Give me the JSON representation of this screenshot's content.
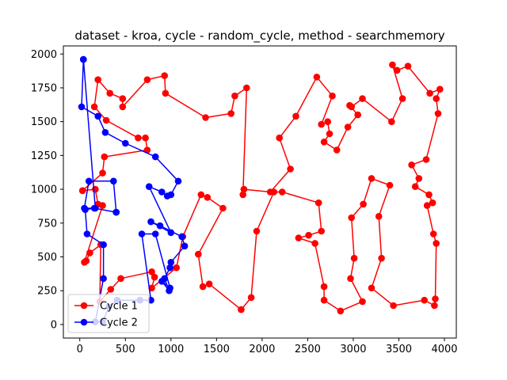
{
  "chart_data": {
    "type": "line",
    "title": "dataset - kroa, cycle - random_cycle, method - searchmemory",
    "xlabel": "",
    "ylabel": "",
    "xlim": [
      -180,
      4130
    ],
    "ylim": [
      -100,
      2060
    ],
    "x_ticks": [
      0,
      500,
      1000,
      1500,
      2000,
      2500,
      3000,
      3500,
      4000
    ],
    "y_ticks": [
      0,
      250,
      500,
      750,
      1000,
      1250,
      1500,
      1750,
      2000
    ],
    "grid": false,
    "legend_position": "lower-left",
    "series": [
      {
        "name": "Cycle 1",
        "color": "#ff0000",
        "points": [
          [
            30,
            990
          ],
          [
            170,
            1000
          ],
          [
            200,
            890
          ],
          [
            250,
            880
          ],
          [
            50,
            460
          ],
          [
            70,
            470
          ],
          [
            110,
            530
          ],
          [
            230,
            590
          ],
          [
            220,
            170
          ],
          [
            340,
            260
          ],
          [
            450,
            340
          ],
          [
            790,
            390
          ],
          [
            820,
            350
          ],
          [
            790,
            270
          ],
          [
            1060,
            420
          ],
          [
            1130,
            650
          ],
          [
            1330,
            960
          ],
          [
            1400,
            940
          ],
          [
            1570,
            860
          ],
          [
            1300,
            520
          ],
          [
            1350,
            280
          ],
          [
            1420,
            300
          ],
          [
            1770,
            110
          ],
          [
            1880,
            200
          ],
          [
            1940,
            690
          ],
          [
            2130,
            980
          ],
          [
            2220,
            980
          ],
          [
            2620,
            900
          ],
          [
            2650,
            690
          ],
          [
            2510,
            660
          ],
          [
            2400,
            640
          ],
          [
            2580,
            600
          ],
          [
            2680,
            280
          ],
          [
            2680,
            180
          ],
          [
            2860,
            100
          ],
          [
            3100,
            170
          ],
          [
            2970,
            340
          ],
          [
            3010,
            490
          ],
          [
            2980,
            790
          ],
          [
            3110,
            890
          ],
          [
            3200,
            1080
          ],
          [
            3400,
            1030
          ],
          [
            3280,
            800
          ],
          [
            3310,
            490
          ],
          [
            3200,
            270
          ],
          [
            3440,
            140
          ],
          [
            3780,
            180
          ],
          [
            3890,
            140
          ],
          [
            3900,
            190
          ],
          [
            3910,
            600
          ],
          [
            3880,
            670
          ],
          [
            3810,
            880
          ],
          [
            3870,
            900
          ],
          [
            3830,
            960
          ],
          [
            3680,
            1020
          ],
          [
            3720,
            1080
          ],
          [
            3640,
            1180
          ],
          [
            3800,
            1220
          ],
          [
            3930,
            1560
          ],
          [
            3910,
            1670
          ],
          [
            3950,
            1740
          ],
          [
            3840,
            1710
          ],
          [
            3600,
            1910
          ],
          [
            3480,
            1880
          ],
          [
            3430,
            1920
          ],
          [
            3540,
            1670
          ],
          [
            3420,
            1500
          ],
          [
            3100,
            1670
          ],
          [
            2980,
            1610
          ],
          [
            2960,
            1620
          ],
          [
            3050,
            1550
          ],
          [
            2940,
            1460
          ],
          [
            2820,
            1290
          ],
          [
            2680,
            1350
          ],
          [
            2740,
            1410
          ],
          [
            2720,
            1500
          ],
          [
            2650,
            1480
          ],
          [
            2770,
            1690
          ],
          [
            2600,
            1830
          ],
          [
            2370,
            1540
          ],
          [
            2190,
            1380
          ],
          [
            2310,
            1150
          ],
          [
            2090,
            980
          ],
          [
            1800,
            1000
          ],
          [
            1790,
            960
          ],
          [
            1830,
            1750
          ],
          [
            1700,
            1690
          ],
          [
            1660,
            1560
          ],
          [
            1380,
            1530
          ],
          [
            940,
            1710
          ],
          [
            930,
            1840
          ],
          [
            740,
            1810
          ],
          [
            470,
            1610
          ],
          [
            470,
            1670
          ],
          [
            330,
            1710
          ],
          [
            200,
            1810
          ],
          [
            160,
            1610
          ],
          [
            290,
            1510
          ],
          [
            640,
            1380
          ],
          [
            720,
            1380
          ],
          [
            740,
            1290
          ],
          [
            270,
            1240
          ],
          [
            250,
            1120
          ],
          [
            30,
            990
          ]
        ]
      },
      {
        "name": "Cycle 2",
        "color": "#0000ff",
        "points": [
          [
            40,
            1960
          ],
          [
            20,
            1610
          ],
          [
            200,
            1540
          ],
          [
            280,
            1420
          ],
          [
            500,
            1340
          ],
          [
            830,
            1240
          ],
          [
            1080,
            1060
          ],
          [
            1000,
            960
          ],
          [
            960,
            950
          ],
          [
            900,
            980
          ],
          [
            760,
            1020
          ],
          [
            1000,
            680
          ],
          [
            780,
            760
          ],
          [
            880,
            730
          ],
          [
            1120,
            650
          ],
          [
            1150,
            580
          ],
          [
            1000,
            460
          ],
          [
            990,
            420
          ],
          [
            930,
            340
          ],
          [
            980,
            250
          ],
          [
            900,
            320
          ],
          [
            990,
            270
          ],
          [
            830,
            670
          ],
          [
            680,
            670
          ],
          [
            780,
            180
          ],
          [
            660,
            180
          ],
          [
            410,
            180
          ],
          [
            320,
            130
          ],
          [
            250,
            20
          ],
          [
            170,
            20
          ],
          [
            260,
            340
          ],
          [
            260,
            590
          ],
          [
            80,
            670
          ],
          [
            60,
            850
          ],
          [
            160,
            860
          ],
          [
            400,
            830
          ],
          [
            400,
            830
          ],
          [
            370,
            1060
          ],
          [
            100,
            1060
          ],
          [
            50,
            860
          ],
          [
            170,
            860
          ],
          [
            40,
            1960
          ]
        ],
        "note_unused": ""
      }
    ]
  },
  "legend": {
    "items": [
      {
        "label": "Cycle 1",
        "color": "#ff0000"
      },
      {
        "label": "Cycle 2",
        "color": "#0000ff"
      }
    ]
  }
}
